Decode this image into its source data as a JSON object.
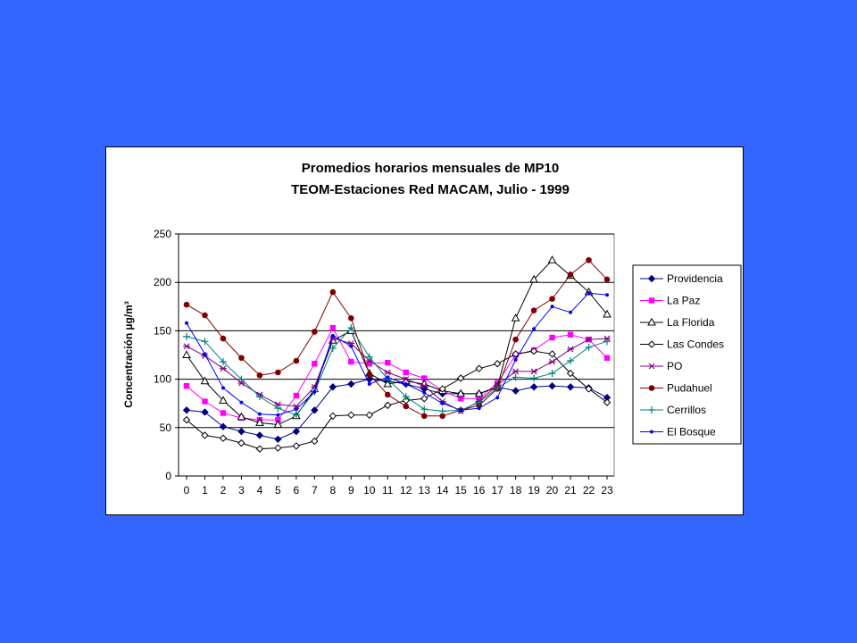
{
  "chart_data": {
    "type": "line",
    "title_line1": "Promedios horarios mensuales de MP10",
    "title_line2": "TEOM-Estaciones Red MACAM, Julio - 1999",
    "ylabel": "Concentración µg/m³",
    "xlabel": "",
    "ylim": [
      0,
      250
    ],
    "yticks": [
      0,
      50,
      100,
      150,
      200,
      250
    ],
    "x": [
      0,
      1,
      2,
      3,
      4,
      5,
      6,
      7,
      8,
      9,
      10,
      11,
      12,
      13,
      14,
      15,
      16,
      17,
      18,
      19,
      20,
      21,
      22,
      23
    ],
    "grid": true,
    "legend_position": "right",
    "series": [
      {
        "name": "Providencia",
        "color": "#000080",
        "marker": "diamond-filled",
        "values": [
          68,
          66,
          51,
          46,
          42,
          38,
          46,
          68,
          92,
          95,
          100,
          98,
          95,
          90,
          85,
          85,
          85,
          92,
          88,
          92,
          93,
          92,
          91,
          81
        ]
      },
      {
        "name": "La Paz",
        "color": "#ff00ff",
        "marker": "square-filled",
        "values": [
          93,
          77,
          65,
          60,
          58,
          58,
          83,
          116,
          153,
          118,
          116,
          117,
          107,
          101,
          88,
          80,
          80,
          96,
          125,
          130,
          143,
          146,
          141,
          122
        ]
      },
      {
        "name": "La Florida",
        "color": "#000000",
        "marker": "triangle-open",
        "values": [
          125,
          98,
          78,
          61,
          55,
          53,
          62,
          90,
          140,
          150,
          106,
          95,
          98,
          95,
          88,
          85,
          85,
          92,
          163,
          203,
          223,
          207,
          190,
          167
        ]
      },
      {
        "name": "Las Condes",
        "color": "#000000",
        "marker": "diamond-open",
        "values": [
          58,
          42,
          39,
          34,
          28,
          29,
          31,
          36,
          62,
          63,
          63,
          73,
          78,
          80,
          90,
          101,
          111,
          116,
          126,
          129,
          126,
          106,
          90,
          76
        ]
      },
      {
        "name": "PO",
        "color": "#800080",
        "marker": "star",
        "values": [
          134,
          124,
          111,
          96,
          84,
          74,
          72,
          92,
          142,
          137,
          119,
          107,
          100,
          93,
          77,
          67,
          77,
          94,
          108,
          108,
          118,
          131,
          141,
          142
        ]
      },
      {
        "name": "Pudahuel",
        "color": "#800000",
        "marker": "circle-filled",
        "values": [
          177,
          166,
          142,
          122,
          104,
          107,
          119,
          149,
          190,
          163,
          105,
          84,
          72,
          62,
          62,
          68,
          73,
          90,
          141,
          171,
          183,
          208,
          223,
          203
        ]
      },
      {
        "name": "Cerrillos",
        "color": "#008080",
        "marker": "plus",
        "values": [
          144,
          139,
          118,
          100,
          82,
          70,
          63,
          87,
          132,
          153,
          123,
          100,
          82,
          69,
          67,
          68,
          76,
          91,
          102,
          101,
          106,
          119,
          133,
          139
        ]
      },
      {
        "name": "El Bosque",
        "color": "#0000ff",
        "marker": "dot",
        "values": [
          158,
          126,
          91,
          76,
          64,
          63,
          69,
          87,
          145,
          134,
          95,
          102,
          95,
          86,
          75,
          68,
          70,
          81,
          120,
          152,
          175,
          169,
          189,
          187
        ]
      }
    ]
  }
}
